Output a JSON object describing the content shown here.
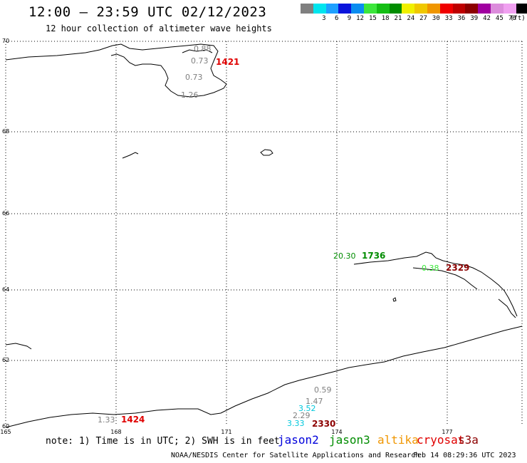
{
  "header": {
    "title": "12:00 — 23:59 UTC 02/12/2023",
    "subtitle": "12 hour collection of altimeter wave heights"
  },
  "scale": {
    "unit": "(ft)",
    "steps": [
      {
        "label": "",
        "color": "#808080"
      },
      {
        "label": "3",
        "color": "#00e5ee"
      },
      {
        "label": "6",
        "color": "#1ea0ff"
      },
      {
        "label": "9",
        "color": "#0a14dc"
      },
      {
        "label": "12",
        "color": "#0a8cf0"
      },
      {
        "label": "15",
        "color": "#3ce63c"
      },
      {
        "label": "18",
        "color": "#14be14"
      },
      {
        "label": "21",
        "color": "#008c00"
      },
      {
        "label": "24",
        "color": "#f0f000"
      },
      {
        "label": "27",
        "color": "#f0c800"
      },
      {
        "label": "30",
        "color": "#f09600"
      },
      {
        "label": "33",
        "color": "#f00000"
      },
      {
        "label": "36",
        "color": "#be0000"
      },
      {
        "label": "39",
        "color": "#8c0000"
      },
      {
        "label": "42",
        "color": "#a000a0"
      },
      {
        "label": "45",
        "color": "#dc8cdc"
      },
      {
        "label": "70",
        "color": "#f0a0f0"
      },
      {
        "label": "",
        "color": "#000000"
      }
    ]
  },
  "map": {
    "lat_labels": [
      "70",
      "68",
      "66",
      "64",
      "62",
      "60"
    ],
    "lon_labels": [
      "165",
      "168",
      "171",
      "174",
      "177"
    ],
    "wave_labels": [
      {
        "text": "0.88",
        "color": "#808080"
      },
      {
        "text": "0.73",
        "color": "#808080"
      },
      {
        "text": "0.73",
        "color": "#808080"
      },
      {
        "text": "1.26",
        "color": "#808080"
      },
      {
        "text": "20.30",
        "color": "#008c00"
      },
      {
        "text": "0.38",
        "color": "#3ce63c"
      },
      {
        "text": "0.59",
        "color": "#808080"
      },
      {
        "text": "1.47",
        "color": "#808080"
      },
      {
        "text": "3.52",
        "color": "#00c8dc"
      },
      {
        "text": "2.29",
        "color": "#808080"
      },
      {
        "text": "3.33",
        "color": "#00c8dc"
      },
      {
        "text": "1.33",
        "color": "#808080"
      }
    ],
    "pass_times": [
      {
        "text": "1421",
        "color": "#e00000"
      },
      {
        "text": "1736",
        "color": "#008c00"
      },
      {
        "text": "2329",
        "color": "#8c0000"
      },
      {
        "text": "2330",
        "color": "#8c0000"
      },
      {
        "text": "1424",
        "color": "#e00000"
      }
    ]
  },
  "footer": {
    "note": "note: 1) Time is in UTC; 2) SWH is in feet",
    "satellites": [
      {
        "name": "jason2",
        "color": "#0000dc"
      },
      {
        "name": "jason3",
        "color": "#008c00"
      },
      {
        "name": "altika",
        "color": "#f09600"
      },
      {
        "name": "cryosat",
        "color": "#e00000"
      },
      {
        "name": "s3a",
        "color": "#8c0000"
      }
    ],
    "credit": "NOAA/NESDIS Center for Satellite Applications and Research",
    "timestamp": "Feb 14 08:29:36 UTC 2023"
  }
}
